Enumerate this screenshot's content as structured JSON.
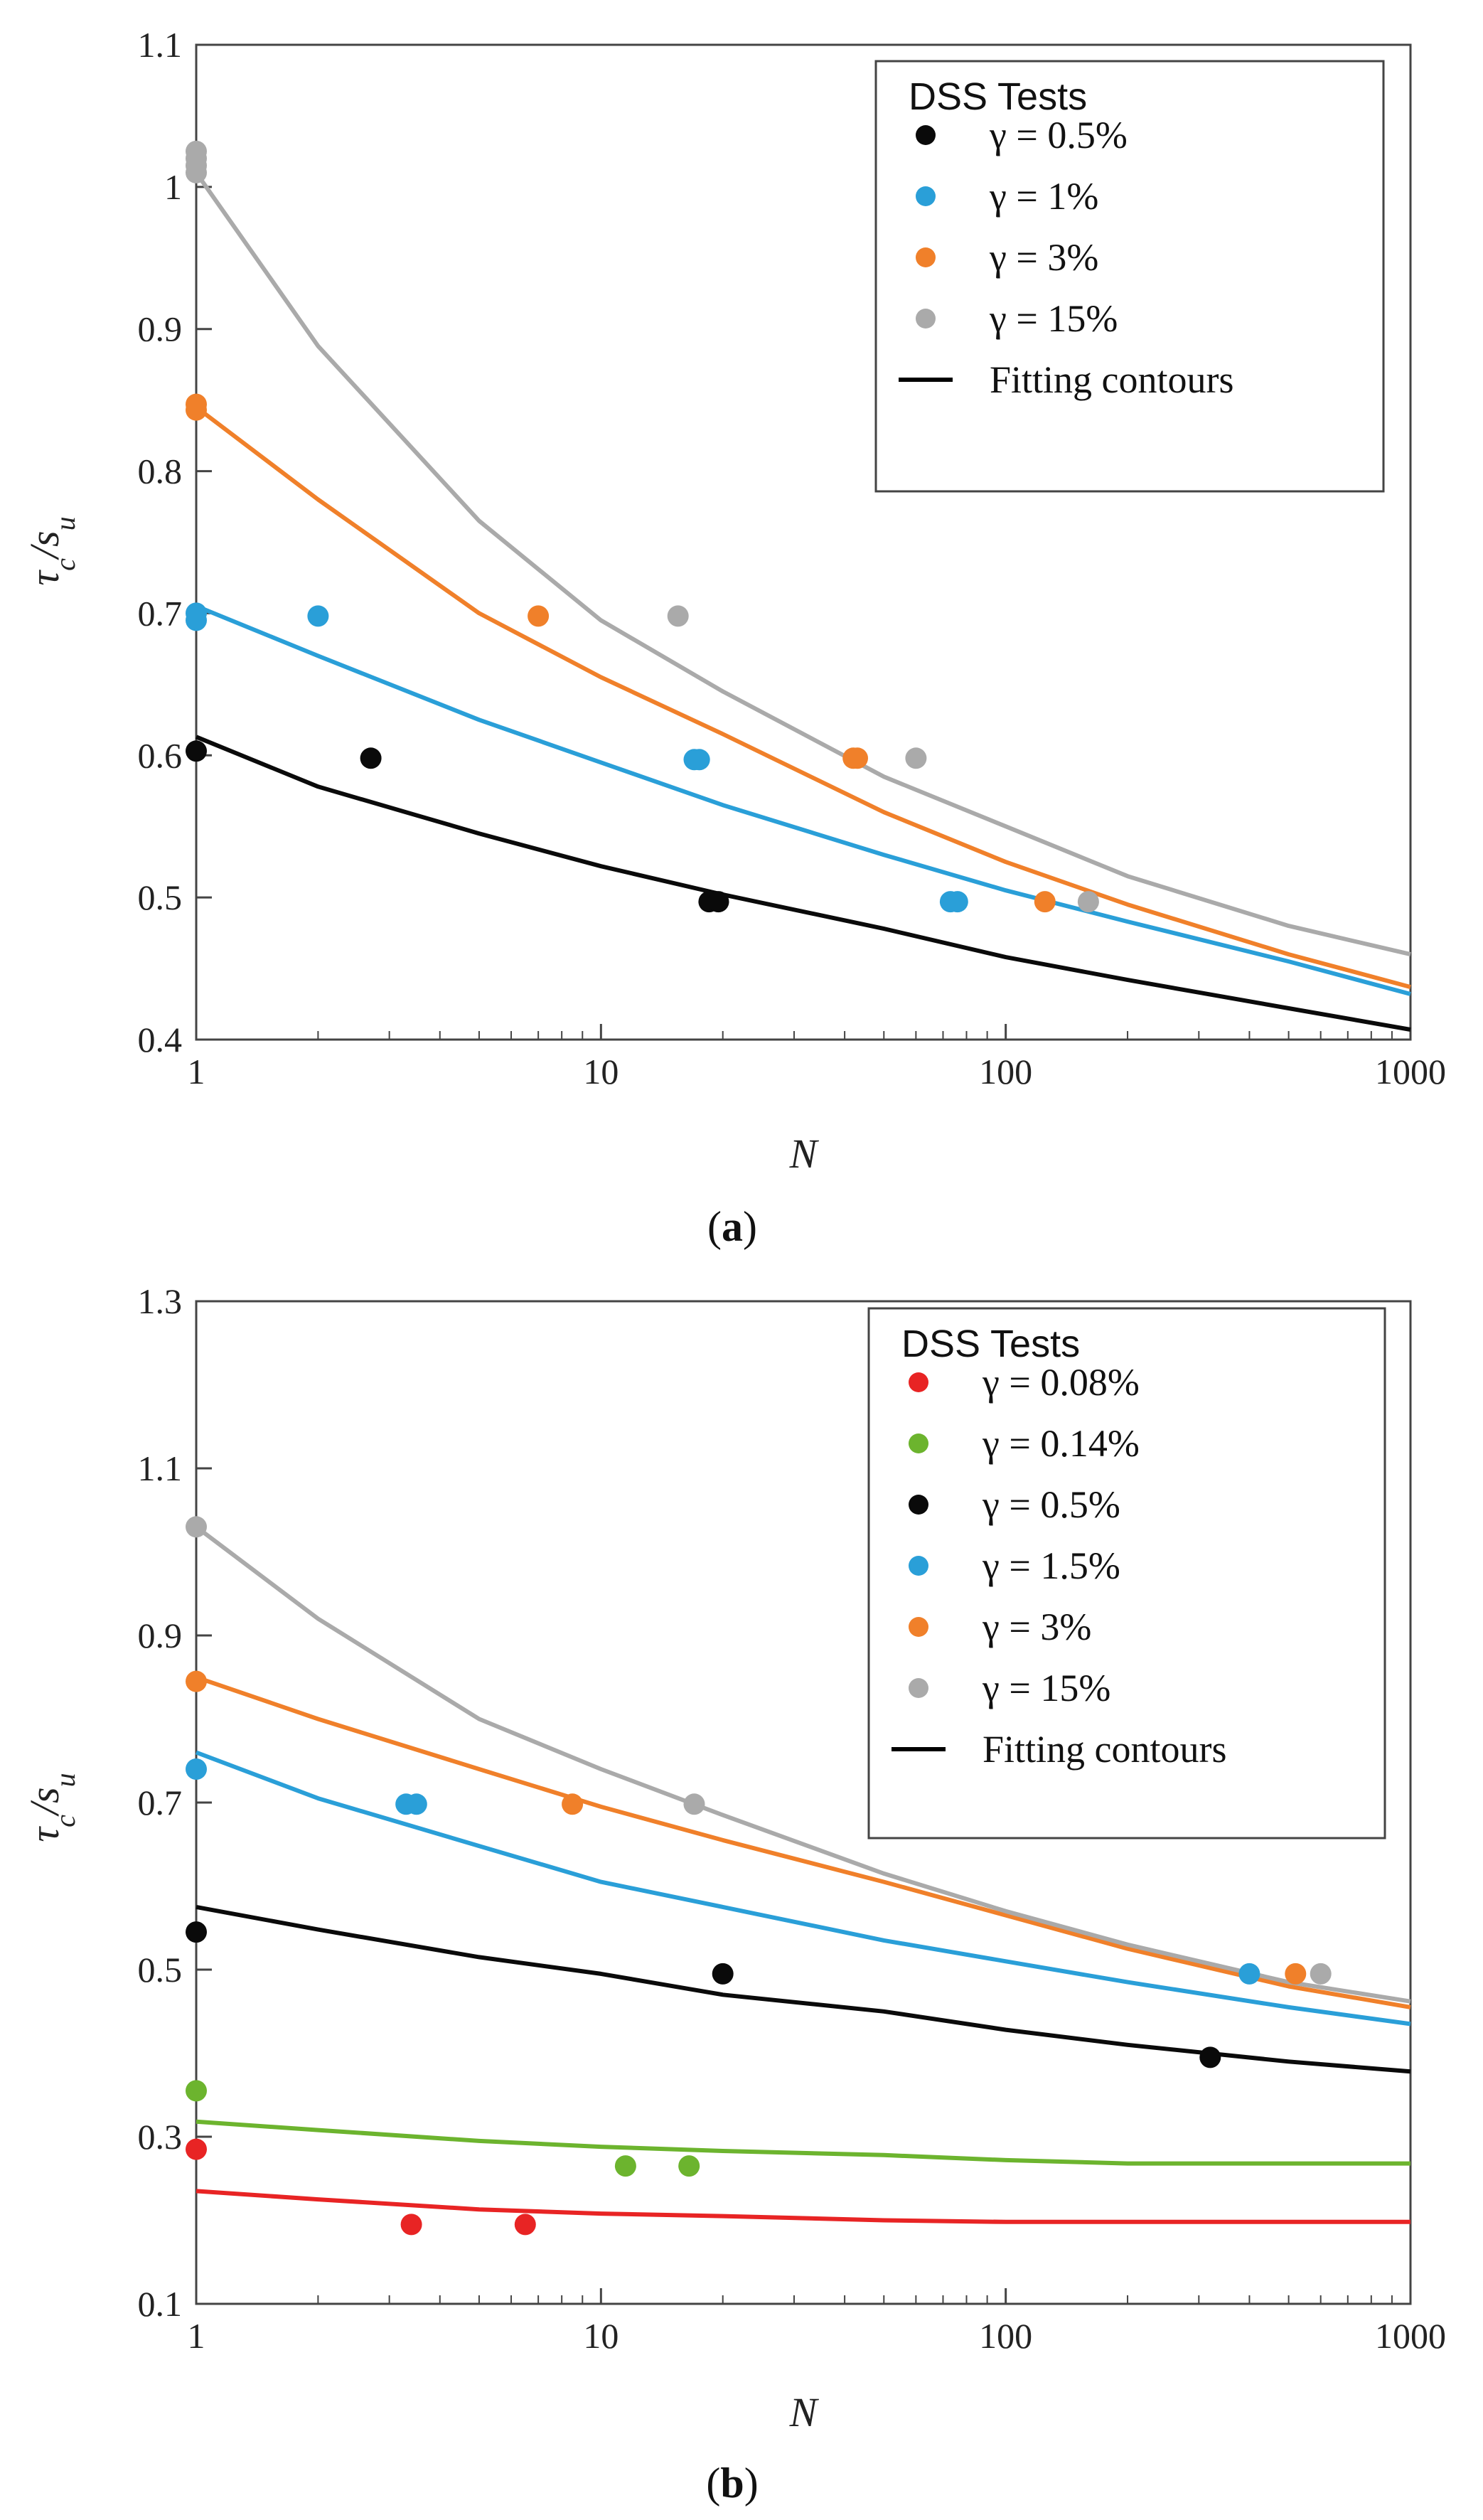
{
  "chart_data": [
    {
      "type": "scatter",
      "panel": "a",
      "caption_letter": "a",
      "xlabel": "N",
      "ylabel_main": "τ",
      "ylabel_sub1": "c",
      "ylabel_slash": "/",
      "ylabel_var": "s",
      "ylabel_sub2": "u",
      "xscale": "log",
      "xlim": [
        1,
        1000
      ],
      "ylim": [
        0.4,
        1.1
      ],
      "xticks": [
        1,
        10,
        100,
        1000
      ],
      "xtick_labels": [
        "1",
        "10",
        "100",
        "1000"
      ],
      "yticks": [
        0.4,
        0.5,
        0.6,
        0.7,
        0.8,
        0.9,
        1.0,
        1.1
      ],
      "ytick_labels": [
        "0.4",
        "0.5",
        "0.6",
        "0.7",
        "0.8",
        "0.9",
        "1",
        "1.1"
      ],
      "legend_title": "DSS Tests",
      "legend_position": "top-right",
      "fit_label": "Fitting  contours",
      "fit_color": "#000000",
      "series": [
        {
          "name": "γ = 0.5%",
          "color": "#0a0a0a",
          "points": [
            [
              1,
              0.603
            ],
            [
              2.7,
              0.598
            ],
            [
              18.5,
              0.497
            ],
            [
              19.5,
              0.497
            ]
          ],
          "curve": [
            [
              1,
              0.613
            ],
            [
              2,
              0.578
            ],
            [
              5,
              0.545
            ],
            [
              10,
              0.522
            ],
            [
              20,
              0.502
            ],
            [
              50,
              0.478
            ],
            [
              100,
              0.458
            ],
            [
              200,
              0.442
            ],
            [
              500,
              0.422
            ],
            [
              1000,
              0.407
            ]
          ]
        },
        {
          "name": "γ = 1%",
          "color": "#2a9fd8",
          "points": [
            [
              1,
              0.695
            ],
            [
              1,
              0.7
            ],
            [
              2,
              0.698
            ],
            [
              17,
              0.597
            ],
            [
              17.5,
              0.597
            ],
            [
              73,
              0.497
            ],
            [
              76,
              0.497
            ]
          ],
          "curve": [
            [
              1,
              0.705
            ],
            [
              2,
              0.67
            ],
            [
              5,
              0.625
            ],
            [
              10,
              0.595
            ],
            [
              20,
              0.565
            ],
            [
              50,
              0.53
            ],
            [
              100,
              0.505
            ],
            [
              200,
              0.483
            ],
            [
              500,
              0.455
            ],
            [
              1000,
              0.432
            ]
          ]
        },
        {
          "name": "γ = 3%",
          "color": "#f0802a",
          "points": [
            [
              1,
              0.843
            ],
            [
              1,
              0.847
            ],
            [
              7,
              0.698
            ],
            [
              42,
              0.598
            ],
            [
              43,
              0.598
            ],
            [
              125,
              0.497
            ]
          ],
          "curve": [
            [
              1,
              0.845
            ],
            [
              2,
              0.78
            ],
            [
              5,
              0.7
            ],
            [
              10,
              0.655
            ],
            [
              20,
              0.615
            ],
            [
              50,
              0.56
            ],
            [
              100,
              0.525
            ],
            [
              200,
              0.495
            ],
            [
              500,
              0.46
            ],
            [
              1000,
              0.437
            ]
          ]
        },
        {
          "name": "γ = 15%",
          "color": "#aaaaaa",
          "points": [
            [
              1,
              1.025
            ],
            [
              1,
              1.02
            ],
            [
              1,
              1.015
            ],
            [
              1,
              1.01
            ],
            [
              15.5,
              0.698
            ],
            [
              60,
              0.598
            ],
            [
              160,
              0.497
            ]
          ],
          "curve": [
            [
              1,
              1.01
            ],
            [
              2,
              0.888
            ],
            [
              5,
              0.765
            ],
            [
              10,
              0.695
            ],
            [
              20,
              0.645
            ],
            [
              50,
              0.585
            ],
            [
              100,
              0.55
            ],
            [
              200,
              0.515
            ],
            [
              500,
              0.48
            ],
            [
              1000,
              0.46
            ]
          ]
        }
      ]
    },
    {
      "type": "scatter",
      "panel": "b",
      "caption_letter": "b",
      "xlabel": "N",
      "ylabel_main": "τ",
      "ylabel_sub1": "c",
      "ylabel_slash": "/",
      "ylabel_var": "s",
      "ylabel_sub2": "u",
      "xscale": "log",
      "xlim": [
        1,
        1000
      ],
      "ylim": [
        0.1,
        1.3
      ],
      "xticks": [
        1,
        10,
        100,
        1000
      ],
      "xtick_labels": [
        "1",
        "10",
        "100",
        "1000"
      ],
      "yticks": [
        0.1,
        0.3,
        0.5,
        0.7,
        0.9,
        1.1,
        1.3
      ],
      "ytick_labels": [
        "0.1",
        "0.3",
        "0.5",
        "0.7",
        "0.9",
        "1.1",
        "1.3"
      ],
      "legend_title": "DSS Tests",
      "legend_position": "top-right",
      "fit_label": "Fitting  contours",
      "fit_color": "#000000",
      "series": [
        {
          "name": "γ = 0.08%",
          "color": "#e82424",
          "points": [
            [
              1,
              0.285
            ],
            [
              3.4,
              0.195
            ],
            [
              6.5,
              0.195
            ]
          ],
          "curve": [
            [
              1,
              0.235
            ],
            [
              2,
              0.225
            ],
            [
              5,
              0.213
            ],
            [
              10,
              0.208
            ],
            [
              20,
              0.205
            ],
            [
              50,
              0.2
            ],
            [
              100,
              0.198
            ],
            [
              200,
              0.198
            ],
            [
              500,
              0.198
            ],
            [
              1000,
              0.198
            ]
          ]
        },
        {
          "name": "γ = 0.14%",
          "color": "#6cb42e",
          "points": [
            [
              1,
              0.355
            ],
            [
              11.5,
              0.265
            ],
            [
              16.5,
              0.265
            ]
          ],
          "curve": [
            [
              1,
              0.318
            ],
            [
              2,
              0.308
            ],
            [
              5,
              0.295
            ],
            [
              10,
              0.288
            ],
            [
              20,
              0.283
            ],
            [
              50,
              0.278
            ],
            [
              100,
              0.272
            ],
            [
              200,
              0.268
            ],
            [
              500,
              0.268
            ],
            [
              1000,
              0.268
            ]
          ]
        },
        {
          "name": "γ = 0.5%",
          "color": "#0a0a0a",
          "points": [
            [
              1,
              0.545
            ],
            [
              20,
              0.495
            ],
            [
              320,
              0.395
            ]
          ],
          "curve": [
            [
              1,
              0.575
            ],
            [
              2,
              0.548
            ],
            [
              5,
              0.515
            ],
            [
              10,
              0.495
            ],
            [
              20,
              0.47
            ],
            [
              50,
              0.45
            ],
            [
              100,
              0.428
            ],
            [
              200,
              0.41
            ],
            [
              500,
              0.39
            ],
            [
              1000,
              0.378
            ]
          ]
        },
        {
          "name": "γ = 1.5%",
          "color": "#2a9fd8",
          "points": [
            [
              1,
              0.74
            ],
            [
              3.3,
              0.698
            ],
            [
              3.5,
              0.698
            ],
            [
              400,
              0.495
            ]
          ],
          "curve": [
            [
              1,
              0.76
            ],
            [
              2,
              0.705
            ],
            [
              5,
              0.648
            ],
            [
              10,
              0.605
            ],
            [
              20,
              0.575
            ],
            [
              50,
              0.535
            ],
            [
              100,
              0.51
            ],
            [
              200,
              0.485
            ],
            [
              500,
              0.455
            ],
            [
              1000,
              0.435
            ]
          ]
        },
        {
          "name": "γ = 3%",
          "color": "#f0802a",
          "points": [
            [
              1,
              0.845
            ],
            [
              8.5,
              0.698
            ],
            [
              520,
              0.495
            ]
          ],
          "curve": [
            [
              1,
              0.85
            ],
            [
              2,
              0.8
            ],
            [
              5,
              0.74
            ],
            [
              10,
              0.695
            ],
            [
              20,
              0.655
            ],
            [
              50,
              0.605
            ],
            [
              100,
              0.565
            ],
            [
              200,
              0.525
            ],
            [
              500,
              0.48
            ],
            [
              1000,
              0.455
            ]
          ]
        },
        {
          "name": "γ = 15%",
          "color": "#aaaaaa",
          "points": [
            [
              1,
              1.03
            ],
            [
              17,
              0.698
            ],
            [
              600,
              0.495
            ]
          ],
          "curve": [
            [
              1,
              1.03
            ],
            [
              2,
              0.92
            ],
            [
              5,
              0.8
            ],
            [
              10,
              0.74
            ],
            [
              20,
              0.685
            ],
            [
              50,
              0.615
            ],
            [
              100,
              0.57
            ],
            [
              200,
              0.53
            ],
            [
              500,
              0.485
            ],
            [
              1000,
              0.462
            ]
          ]
        }
      ]
    }
  ]
}
